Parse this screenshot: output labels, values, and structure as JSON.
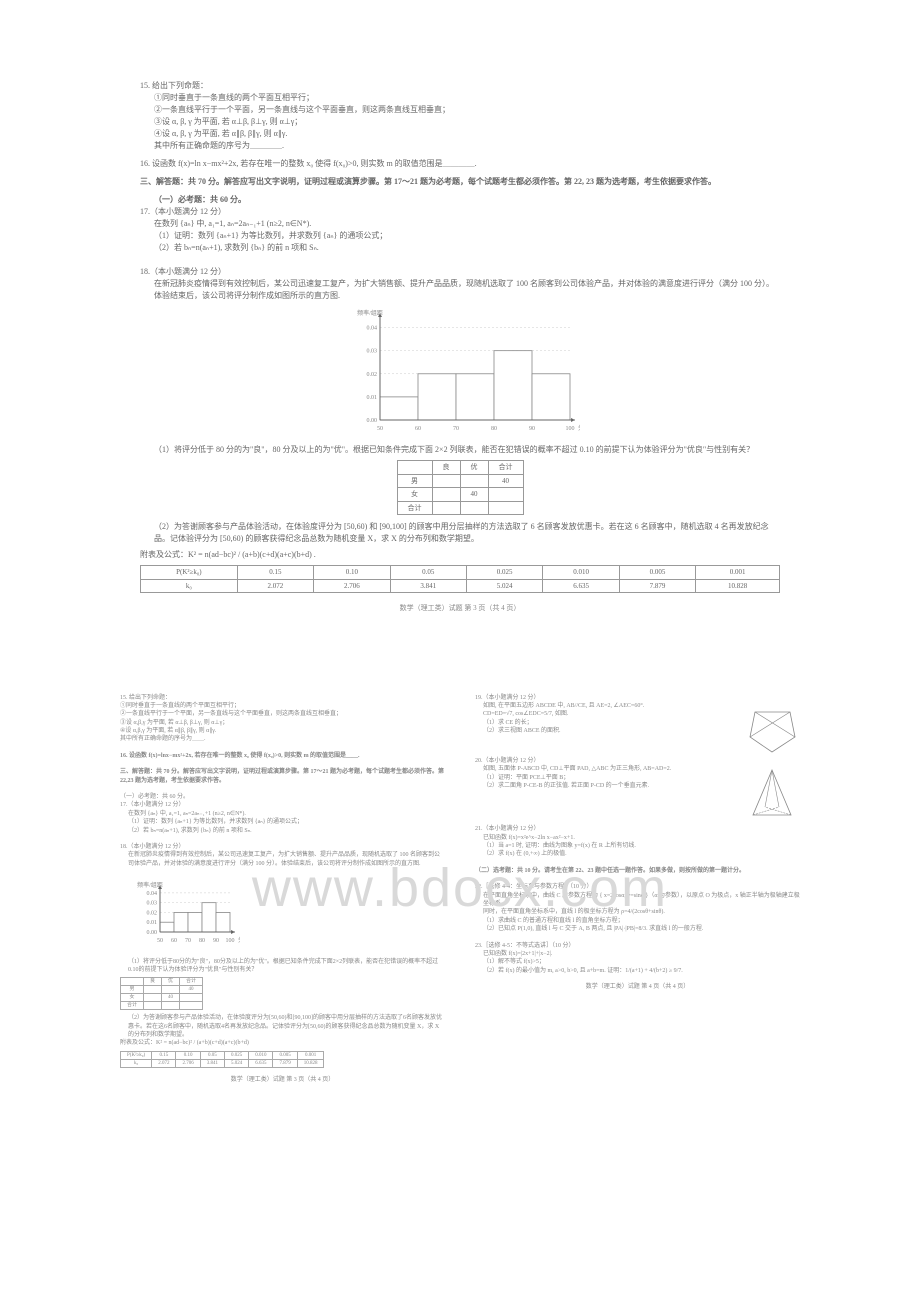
{
  "q15": {
    "stem": "15. 给出下列命题：",
    "i": "①同时垂直于一条直线的两个平面互相平行；",
    "ii": "②一条直线平行于一个平面，另一条直线与这个平面垂直，则这两条直线互相垂直；",
    "iii": "③设 α, β, γ 为平面, 若 α⊥β, β⊥γ, 则 α⊥γ；",
    "iv": "④设 α, β, γ 为平面, 若 α∥β, β∥γ, 则 α∥γ.",
    "tail": "其中所有正确命题的序号为＿＿＿＿."
  },
  "q16": {
    "stem": "16. 设函数 f(x)=ln x−mx²+2x, 若存在唯一的整数 x₀ 使得 f(x₀)>0, 则实数 m 的取值范围是＿＿＿＿."
  },
  "section3": {
    "title": "三、解答题：共 70 分。解答应写出文字说明，证明过程或演算步骤。第 17～21 题为必考题，每个试题考生都必须作答。第 22, 23 题为选考题，考生依据要求作答。",
    "sub": "（一）必考题：共 60 分。"
  },
  "q17": {
    "head": "17.（本小题满分 12 分）",
    "l1": "在数列 {aₙ} 中, a₁=1, aₙ=2aₙ₋₁+1 (n≥2, n∈N*).",
    "l2": "（1）证明：数列 {aₙ+1} 为等比数列，并求数列 {aₙ} 的通项公式；",
    "l3": "（2）若 bₙ=n(aₙ+1), 求数列 {bₙ} 的前 n 项和 Sₙ."
  },
  "q18": {
    "head": "18.（本小题满分 12 分）",
    "intro": "在新冠肺炎疫情得到有效控制后，某公司迅速复工复产，为扩大销售额、提升产品品质，现随机选取了 100 名顾客到公司体验产品，并对体验的满意度进行评分（满分 100 分）。体验结束后，该公司将评分制作成如图所示的直方图.",
    "chart": {
      "ylabel": "频率/组距",
      "xlabel": "分数",
      "xticks": [
        "50",
        "60",
        "70",
        "80",
        "90",
        "100"
      ],
      "yticks": [
        "0.00",
        "0.01",
        "0.02",
        "0.03",
        "0.04"
      ],
      "bars": [
        0.01,
        0.02,
        0.02,
        0.03,
        0.02
      ],
      "ymax": 0.045,
      "bar_color": "#ffffff",
      "border_color": "#888888",
      "grid_color": "#cccccc"
    },
    "p1": "（1）将评分低于 80 分的为\"良\"，80 分及以上的为\"优\"。根据已知条件完成下面 2×2 列联表，能否在犯错误的概率不超过 0.10 的前提下认为体验评分为\"优良\"与性别有关？",
    "table1": {
      "headers": [
        "",
        "良",
        "优",
        "合计"
      ],
      "rows": [
        [
          "男",
          "",
          "",
          "40"
        ],
        [
          "女",
          "",
          "40",
          ""
        ],
        [
          "合计",
          "",
          "",
          ""
        ]
      ]
    },
    "p2": "（2）为答谢顾客参与产品体验活动，在体验度评分为 [50,60) 和 [90,100] 的顾客中用分层抽样的方法选取了 6 名顾客发放优惠卡。若在这 6 名顾客中，随机选取 4 名再发放纪念品。记体验评分为 [50,60) 的顾客获得纪念品总数为随机变量 X，求 X 的分布列和数学期望。",
    "formula": "附表及公式：K² = n(ad−bc)² / (a+b)(c+d)(a+c)(b+d) .",
    "table2": {
      "headers": [
        "P(K²≥k₀)",
        "0.15",
        "0.10",
        "0.05",
        "0.025",
        "0.010",
        "0.005",
        "0.001"
      ],
      "rows": [
        [
          "k₀",
          "2.072",
          "2.706",
          "3.841",
          "5.024",
          "6.635",
          "7.879",
          "10.828"
        ]
      ]
    }
  },
  "page_footer1": "数学（理工类）试题  第 3 页（共 4 页）",
  "page2": {
    "left": {
      "q15r": "15. 给出下列命题：\n①同时垂直于一条直线的两个平面互相平行；\n②一条直线平行于一个平面，另一条直线与这个平面垂直，则这两条直线互相垂直；\n③设 α,β,γ 为平面, 若 α⊥β, β⊥γ, 则 α⊥γ；\n④设 α,β,γ 为平面, 若 α∥β, β∥γ, 则 α∥γ.\n其中所有正确命题的序号为＿＿.",
      "q16r": "16. 设函数 f(x)=lnx−mx²+2x, 若存在唯一的整数 x₀ 使得 f(x₀)>0, 则实数 m 的取值范围是＿＿.",
      "sec3_title": "三、解答题：共 70 分。解答应写出文字说明，证明过程或演算步骤。第 17～21 题为必考题，每个试题考生都必须作答。第 22,23 题为选考题，考生依据要求作答。",
      "sec3_sub": "（一）必考题：共 60 分。",
      "q17h": "17.（本小题满分 12 分）",
      "q17b": "在数列 {aₙ} 中, a₁=1, aₙ=2aₙ₋₁+1 (n≥2, n∈N*).\n（1）证明：数列 {aₙ+1} 为等比数列，并求数列 {aₙ} 的通项公式；\n（2）若 bₙ=n(aₙ+1), 求数列 {bₙ} 的前 n 项和 Sₙ.",
      "q18h": "18.（本小题满分 12 分）",
      "q18intro": "在新冠肺炎疫情得到有效控制后，某公司迅速复工复产，为扩大销售额、提升产品品质，现随机选取了 100 名顾客到公司体验产品，并对体验的满意度进行评分（满分 100 分）。体验结束后，该公司将评分制作成如图所示的直方图.",
      "q18p1": "（1）将评分低于80分的为\"良\"，80分及以上的为\"优\"。根据已知条件完成下面2×2列联表，能否在犯错误的概率不超过0.10的前提下认为体验评分为\"优良\"与性别有关？",
      "q18p2": "（2）为答谢顾客参与产品体验活动，在体验度评分为[50,60)和[90,100]的顾客中用分层抽样的方法选取了6名顾客发放优惠卡。若在这6名顾客中，随机选取4名再发放纪念品。记体验评分为[50,60)的顾客获得纪念品总数为随机变量 X，求 X 的分布列和数学期望。",
      "q18formula": "附表及公式：K² = n(ad−bc)² / (a+b)(c+d)(a+c)(b+d)",
      "footer": "数学（理工类）试题  第 3 页（共 4 页）"
    },
    "right": {
      "q19h": "19.（本小题满分 12 分）",
      "q19b": "如图, 在平面五边形 ABCDE 中, AB//CE, 且 AE=2, ∠AEC=60°.",
      "q19c": "CD=ED=√7, cos∠EDC=5/7, 如图.\n（1）求 CE 的长；\n（2）求三视图 ABCE 的面积.",
      "q20h": "20.（本小题满分 12 分）",
      "q20b": "如图, 五面体 P-ABCD 中, CD⊥平面 PAD, △ABC 为正三角形, AB=AD=2.\n（1）证明：平面 PCE⊥平面 B；\n（2）求二面角 P-CE-B 的正弦值. 若正面 P-CD 的一个垂直元素.",
      "q21h": "21.（本小题满分 12 分）",
      "q21b": "已知函数 f(x)=x²e^x−2ln x−ax²−x+1.\n（1）当 a=1 时, 证明：曲线为图象 y=f(x) 在 R 上所有切线.\n（2）求 f(x) 在 (0,+∞) 上的极值.",
      "secB": "（二）选考题：共 10 分。请考生在第 22、23 题中任选一题作答。如果多做，则按所做的第一题计分。",
      "q22h": "22.［选修 4-4：坐标系与参数方程］（10 分） ",
      "q22b": "在平面直角坐标系中，曲线 C 的参数方程为 { x=2cosα, y=sinα }（α 为参数），以原点 O 为极点，x 轴正半轴为极轴建立极坐标系.\n同时，在平面直角坐标系中，直线 l 的极坐标方程为 ρ=4/(2cosθ+sinθ).\n（1）求曲线 C 的普通方程和直线 l 的直角坐标方程；\n（2）已知点 P(1,0), 直线 l 与 C 交于 A, B 两点, 且 |PA|·|PB|=8/3. 求直线 l 的一般方程.",
      "q23h": "23.［选修 4-5：不等式选讲］（10 分）",
      "q23b": "已知函数 f(x)=|2x+1|+|x−2|.\n（1）解不等式 f(x)>5；\n（2）若 f(x) 的最小值为 m, a>0, b>0, 且 a+b=m. 证明：1/(a+1) + 4/(b+2) ≥ 9/7.",
      "footer": "数学（理工类）试题  第 4 页（共 4 页）"
    }
  }
}
